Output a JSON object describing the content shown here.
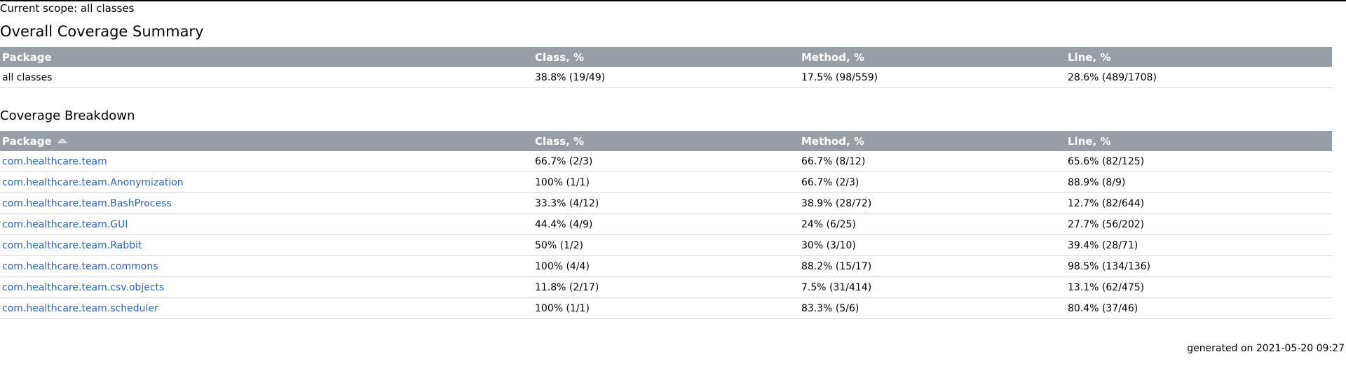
{
  "scope": "Current scope: all classes",
  "summary": {
    "title": "Overall Coverage Summary",
    "headers": [
      "Package",
      "Class, %",
      "Method, %",
      "Line, %"
    ],
    "row": [
      "all classes",
      "38.8% (19/49)",
      "17.5% (98/559)",
      "28.6% (489/1708)"
    ]
  },
  "breakdown": {
    "title": "Coverage Breakdown",
    "headers": [
      "Package",
      "Class, %",
      "Method, %",
      "Line, %"
    ],
    "rows": [
      [
        "com.healthcare.team",
        "66.7% (2/3)",
        "66.7% (8/12)",
        "65.6% (82/125)"
      ],
      [
        "com.healthcare.team.Anonymization",
        "100% (1/1)",
        "66.7% (2/3)",
        "88.9% (8/9)"
      ],
      [
        "com.healthcare.team.BashProcess",
        "33.3% (4/12)",
        "38.9% (28/72)",
        "12.7% (82/644)"
      ],
      [
        "com.healthcare.team.GUI",
        "44.4% (4/9)",
        "24% (6/25)",
        "27.7% (56/202)"
      ],
      [
        "com.healthcare.team.Rabbit",
        "50% (1/2)",
        "30% (3/10)",
        "39.4% (28/71)"
      ],
      [
        "com.healthcare.team.commons",
        "100% (4/4)",
        "88.2% (15/17)",
        "98.5% (134/136)"
      ],
      [
        "com.healthcare.team.csv.objects",
        "11.8% (2/17)",
        "7.5% (31/414)",
        "13.1% (62/475)"
      ],
      [
        "com.healthcare.team.scheduler",
        "100% (1/1)",
        "83.3% (5/6)",
        "80.4% (37/46)"
      ]
    ]
  },
  "icons": {
    "sort": "sort-ascending-icon"
  },
  "footer": "generated on 2021-05-20 09:27"
}
